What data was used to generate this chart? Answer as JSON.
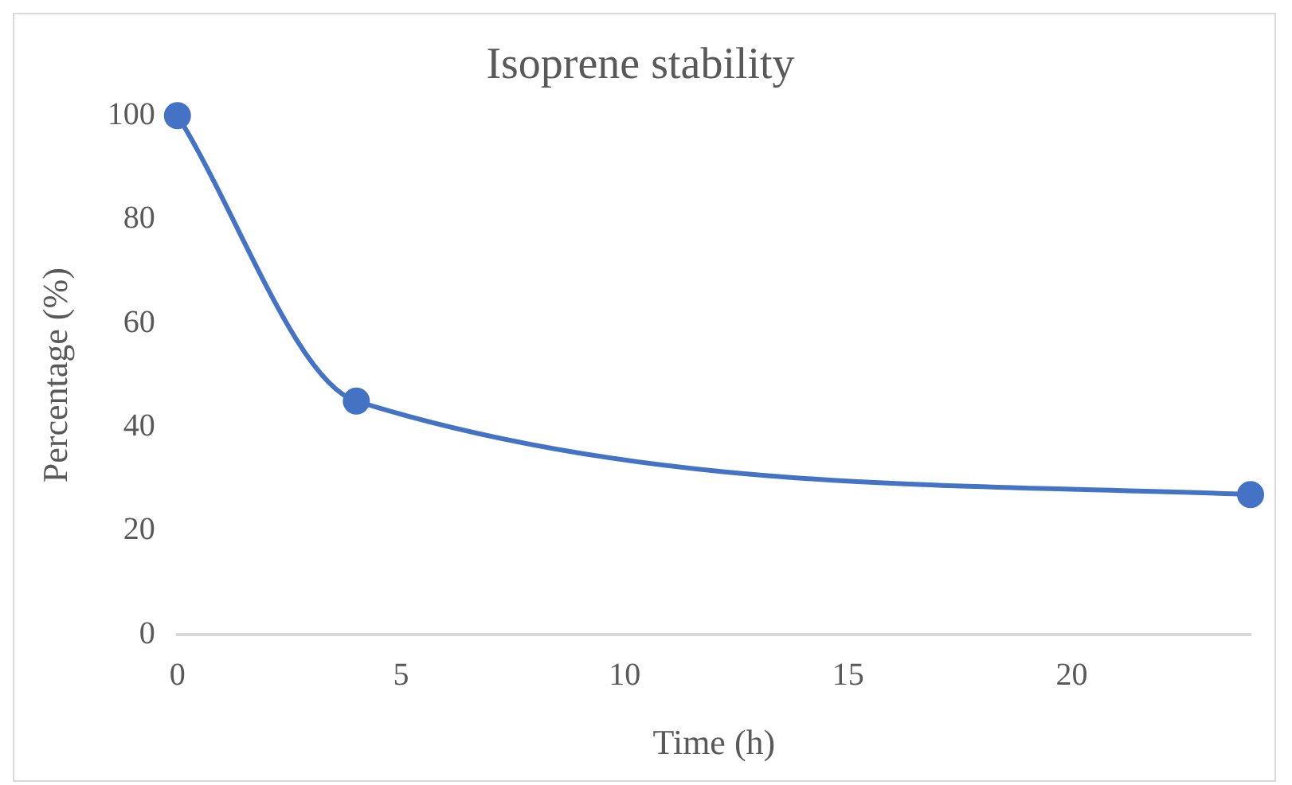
{
  "chart_data": {
    "type": "line",
    "title": "Isoprene stability",
    "xlabel": "Time (h)",
    "ylabel": "Percentage (%)",
    "x": [
      0,
      4,
      24
    ],
    "series": [
      {
        "color": "#4472c4",
        "values": [
          100,
          45,
          27
        ]
      }
    ],
    "xlim": [
      0,
      24
    ],
    "xticks": [
      0,
      5,
      10,
      15,
      20
    ],
    "ylim": [
      0,
      100
    ],
    "yticks": [
      0,
      20,
      40,
      60,
      80,
      100
    ],
    "marker": "circle",
    "line_style": "solid"
  }
}
